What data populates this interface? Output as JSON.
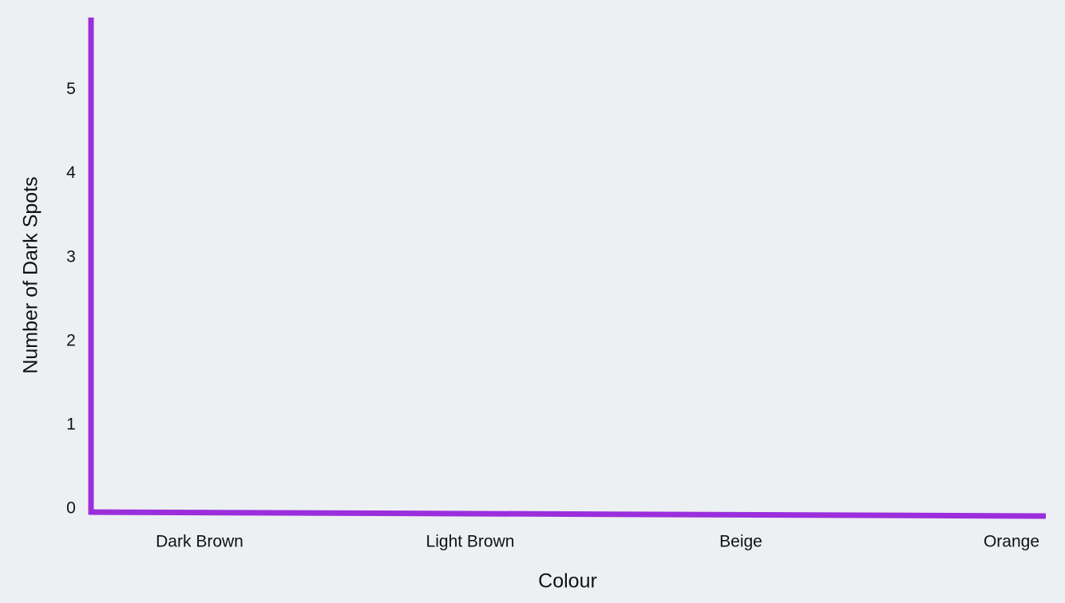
{
  "chart_data": {
    "type": "bar",
    "x_label": "Colour",
    "y_label": "Number of Dark Spots",
    "categories": [
      "Dark Brown",
      "Light Brown",
      "Beige",
      "Orange"
    ],
    "ylim": [
      0,
      5.9
    ],
    "yticks": [
      0,
      1,
      2,
      3,
      4,
      5
    ],
    "axis_color": "#9b2fdc",
    "grid": false
  }
}
